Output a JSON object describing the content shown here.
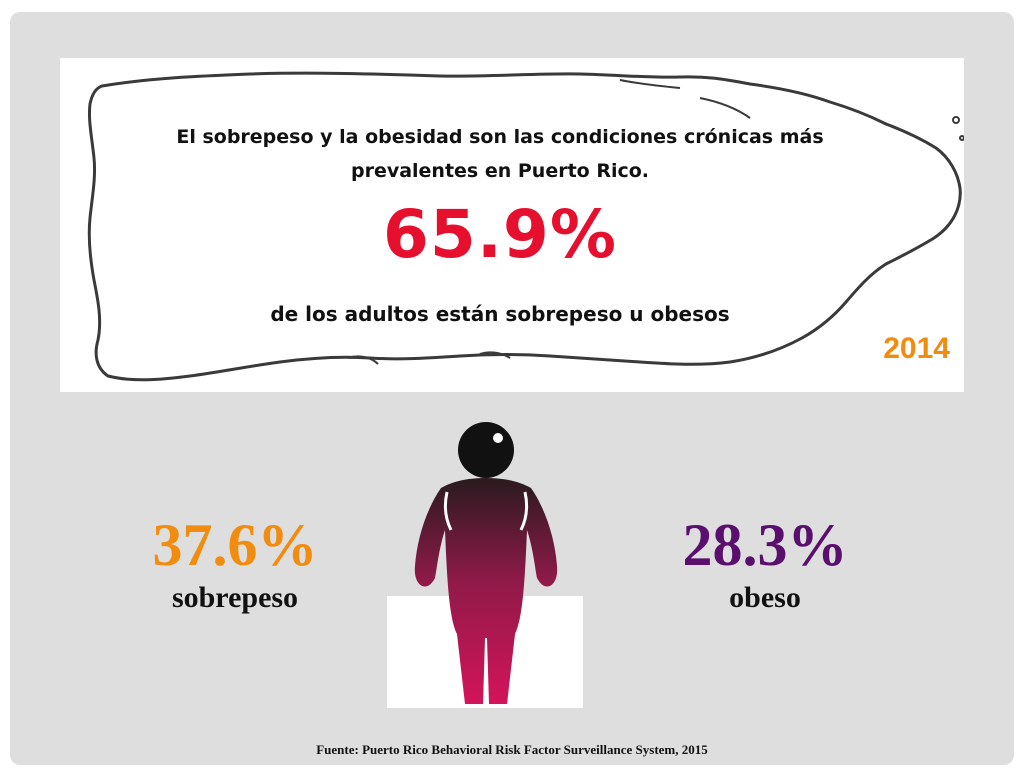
{
  "header": {
    "line1": "El sobrepeso y la obesidad son las condiciones crónicas más",
    "line2": "prevalentes en Puerto Rico.",
    "big_percent": "65.9%",
    "subtext": "de los adultos están sobrepeso u obesos",
    "year": "2014"
  },
  "stats": {
    "overweight": {
      "percent": "37.6%",
      "label": "sobrepeso"
    },
    "obese": {
      "percent": "28.3%",
      "label": "obeso"
    }
  },
  "footer": {
    "source": "Fuente:  Puerto Rico Behavioral Risk Factor Surveillance System, 2015"
  },
  "colors": {
    "headline_red": "#e60f2e",
    "orange": "#f28c0f",
    "purple": "#5a0f6e",
    "magenta": "#d4145a",
    "slide_bg": "#dedede"
  },
  "icons": {
    "map": "puerto-rico-outline-map",
    "figure": "obese-person-silhouette"
  }
}
